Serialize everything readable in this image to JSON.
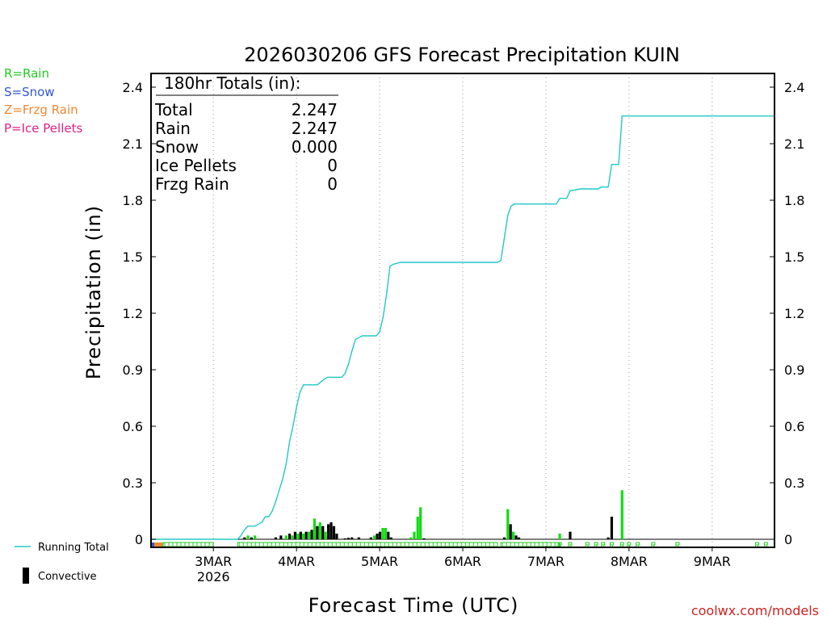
{
  "colors": {
    "rain": "#22cc22",
    "snow": "#3355dd",
    "frzg": "#ee8833",
    "ice": "#dd2288",
    "running": "#22c8c8",
    "convective": "#000000",
    "rain_bar": "#11dd11"
  },
  "chart_data": {
    "type": "bar+line",
    "title": "2026030206 GFS Forecast Precipitation KUIN",
    "ylabel": "Precipitation (in)",
    "xlabel": "Forecast Time (UTC)",
    "ylim": [
      0,
      2.4
    ],
    "yticks": [
      "0",
      "0.3",
      "0.6",
      "0.9",
      "1.2",
      "1.5",
      "1.8",
      "2.1",
      "2.4"
    ],
    "x_unit": "forecast hour",
    "xlim": [
      0,
      180
    ],
    "xticks": [
      {
        "hour": 18,
        "label": "3MAR",
        "sub": "2026"
      },
      {
        "hour": 42,
        "label": "4MAR",
        "sub": ""
      },
      {
        "hour": 66,
        "label": "5MAR",
        "sub": ""
      },
      {
        "hour": 90,
        "label": "6MAR",
        "sub": ""
      },
      {
        "hour": 114,
        "label": "7MAR",
        "sub": ""
      },
      {
        "hour": 138,
        "label": "8MAR",
        "sub": ""
      },
      {
        "hour": 162,
        "label": "9MAR",
        "sub": ""
      }
    ],
    "running_total": [
      [
        0,
        0
      ],
      [
        25,
        0
      ],
      [
        26,
        0.02
      ],
      [
        27,
        0.05
      ],
      [
        28,
        0.07
      ],
      [
        30,
        0.07
      ],
      [
        31,
        0.08
      ],
      [
        32,
        0.09
      ],
      [
        33,
        0.12
      ],
      [
        34,
        0.12
      ],
      [
        35,
        0.15
      ],
      [
        36,
        0.2
      ],
      [
        37,
        0.26
      ],
      [
        38,
        0.32
      ],
      [
        39,
        0.4
      ],
      [
        40,
        0.52
      ],
      [
        41,
        0.6
      ],
      [
        42,
        0.7
      ],
      [
        43,
        0.78
      ],
      [
        44,
        0.82
      ],
      [
        48,
        0.82
      ],
      [
        50,
        0.85
      ],
      [
        51,
        0.86
      ],
      [
        55,
        0.86
      ],
      [
        56,
        0.88
      ],
      [
        57,
        0.93
      ],
      [
        58,
        1.0
      ],
      [
        59,
        1.06
      ],
      [
        60,
        1.07
      ],
      [
        61,
        1.08
      ],
      [
        65,
        1.08
      ],
      [
        66,
        1.1
      ],
      [
        67,
        1.18
      ],
      [
        68,
        1.3
      ],
      [
        69,
        1.45
      ],
      [
        70,
        1.46
      ],
      [
        72,
        1.47
      ],
      [
        100,
        1.47
      ],
      [
        101,
        1.48
      ],
      [
        102,
        1.6
      ],
      [
        103,
        1.72
      ],
      [
        104,
        1.77
      ],
      [
        105,
        1.78
      ],
      [
        117,
        1.78
      ],
      [
        118,
        1.81
      ],
      [
        120,
        1.81
      ],
      [
        121,
        1.85
      ],
      [
        124,
        1.86
      ],
      [
        129,
        1.86
      ],
      [
        130,
        1.87
      ],
      [
        132,
        1.87
      ],
      [
        133,
        1.99
      ],
      [
        135,
        1.99
      ],
      [
        136,
        2.247
      ],
      [
        180,
        2.247
      ]
    ],
    "bars": [
      {
        "hour": 27,
        "value": 0.01,
        "type": "convective"
      },
      {
        "hour": 28,
        "value": 0.02,
        "type": "rain"
      },
      {
        "hour": 29,
        "value": 0.01,
        "type": "convective"
      },
      {
        "hour": 30,
        "value": 0.02,
        "type": "rain"
      },
      {
        "hour": 36,
        "value": 0.01,
        "type": "convective"
      },
      {
        "hour": 37.5,
        "value": 0.02,
        "type": "convective"
      },
      {
        "hour": 39,
        "value": 0.02,
        "type": "rain"
      },
      {
        "hour": 40,
        "value": 0.03,
        "type": "convective"
      },
      {
        "hour": 40.8,
        "value": 0.02,
        "type": "rain"
      },
      {
        "hour": 41.6,
        "value": 0.04,
        "type": "convective"
      },
      {
        "hour": 42.4,
        "value": 0.03,
        "type": "rain"
      },
      {
        "hour": 43.2,
        "value": 0.04,
        "type": "convective"
      },
      {
        "hour": 44,
        "value": 0.03,
        "type": "rain"
      },
      {
        "hour": 44.8,
        "value": 0.04,
        "type": "convective"
      },
      {
        "hour": 45.6,
        "value": 0.04,
        "type": "rain"
      },
      {
        "hour": 46.4,
        "value": 0.05,
        "type": "convective"
      },
      {
        "hour": 47.2,
        "value": 0.11,
        "type": "rain"
      },
      {
        "hour": 48,
        "value": 0.07,
        "type": "convective"
      },
      {
        "hour": 48.8,
        "value": 0.09,
        "type": "rain"
      },
      {
        "hour": 49.6,
        "value": 0.07,
        "type": "convective"
      },
      {
        "hour": 50.4,
        "value": 0.04,
        "type": "rain"
      },
      {
        "hour": 51.2,
        "value": 0.08,
        "type": "convective"
      },
      {
        "hour": 52,
        "value": 0.09,
        "type": "convective"
      },
      {
        "hour": 52.8,
        "value": 0.07,
        "type": "convective"
      },
      {
        "hour": 53.6,
        "value": 0.03,
        "type": "convective"
      },
      {
        "hour": 56,
        "value": 0.005,
        "type": "convective"
      },
      {
        "hour": 57,
        "value": 0.008,
        "type": "convective"
      },
      {
        "hour": 58,
        "value": 0.01,
        "type": "convective"
      },
      {
        "hour": 60,
        "value": 0.01,
        "type": "convective"
      },
      {
        "hour": 63.5,
        "value": 0.01,
        "type": "convective"
      },
      {
        "hour": 64.5,
        "value": 0.02,
        "type": "rain"
      },
      {
        "hour": 65.3,
        "value": 0.03,
        "type": "convective"
      },
      {
        "hour": 66.1,
        "value": 0.04,
        "type": "convective"
      },
      {
        "hour": 66.9,
        "value": 0.06,
        "type": "rain"
      },
      {
        "hour": 67.7,
        "value": 0.06,
        "type": "rain"
      },
      {
        "hour": 68.5,
        "value": 0.04,
        "type": "convective"
      },
      {
        "hour": 69.3,
        "value": 0.01,
        "type": "convective"
      },
      {
        "hour": 75,
        "value": 0.01,
        "type": "rain"
      },
      {
        "hour": 76,
        "value": 0.04,
        "type": "rain"
      },
      {
        "hour": 77,
        "value": 0.12,
        "type": "rain"
      },
      {
        "hour": 77.8,
        "value": 0.17,
        "type": "rain"
      },
      {
        "hour": 78.8,
        "value": 0.005,
        "type": "convective"
      },
      {
        "hour": 102,
        "value": 0.01,
        "type": "convective"
      },
      {
        "hour": 103,
        "value": 0.16,
        "type": "rain"
      },
      {
        "hour": 103.8,
        "value": 0.08,
        "type": "convective"
      },
      {
        "hour": 104.6,
        "value": 0.04,
        "type": "rain"
      },
      {
        "hour": 105.4,
        "value": 0.02,
        "type": "convective"
      },
      {
        "hour": 106.2,
        "value": 0.01,
        "type": "convective"
      },
      {
        "hour": 118,
        "value": 0.03,
        "type": "rain"
      },
      {
        "hour": 121,
        "value": 0.04,
        "type": "convective"
      },
      {
        "hour": 132,
        "value": 0.01,
        "type": "convective"
      },
      {
        "hour": 133,
        "value": 0.12,
        "type": "convective"
      },
      {
        "hour": 136,
        "value": 0.26,
        "type": "rain"
      }
    ],
    "ptype_strip": {
      "frzg_hours": [
        0.5,
        3.5
      ],
      "snow_marks": [
        0.2
      ],
      "rain_segments": [
        [
          3.5,
          18
        ],
        [
          25,
          100
        ],
        [
          101,
          118
        ]
      ],
      "rain_marks": [
        118,
        121,
        126,
        128.5,
        130.5,
        133,
        136,
        138,
        140.5,
        145,
        152,
        175,
        177.5
      ]
    }
  },
  "legend": {
    "rain": "R=Rain",
    "snow": "S=Snow",
    "frzg": "Z=Frzg Rain",
    "ice": "P=Ice Pellets",
    "running": "Running Total",
    "convective": "Convective"
  },
  "totals": {
    "header": "180hr Totals (in):",
    "rows": [
      {
        "label": "Total",
        "value": "2.247"
      },
      {
        "label": "Rain",
        "value": "2.247"
      },
      {
        "label": "Snow",
        "value": "0.000"
      },
      {
        "label": "Ice Pellets",
        "value": "0"
      },
      {
        "label": "Frzg Rain",
        "value": "0"
      }
    ]
  },
  "credit": "coolwx.com/models"
}
